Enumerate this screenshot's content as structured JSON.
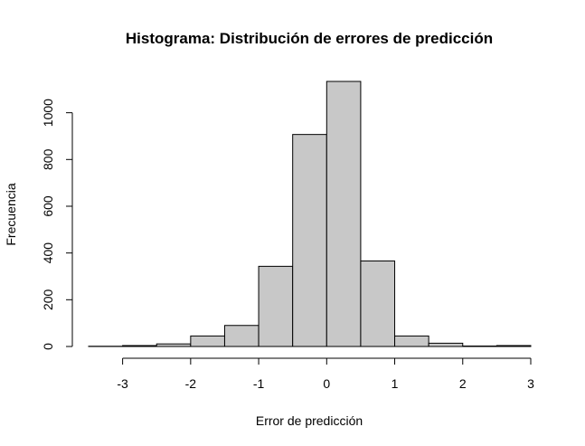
{
  "chart_data": {
    "type": "bar",
    "title": "Histograma: Distribución de errores de predicción",
    "xlabel": "Error de predicción",
    "ylabel": "Frecuencia",
    "xlim": [
      -3.5,
      3
    ],
    "ylim": [
      0,
      1134
    ],
    "x_ticks": [
      -3,
      -2,
      -1,
      0,
      1,
      2,
      3
    ],
    "y_ticks": [
      0,
      200,
      400,
      600,
      800,
      1000
    ],
    "bin_edges": [
      -3.5,
      -3,
      -2.5,
      -2,
      -1.5,
      -1,
      -0.5,
      0,
      0.5,
      1,
      1.5,
      2,
      2.5,
      3
    ],
    "values": [
      1,
      4,
      11,
      45,
      90,
      343,
      907,
      1134,
      366,
      45,
      14,
      2,
      4
    ],
    "bar_color": "#c8c8c8",
    "grid": false
  }
}
